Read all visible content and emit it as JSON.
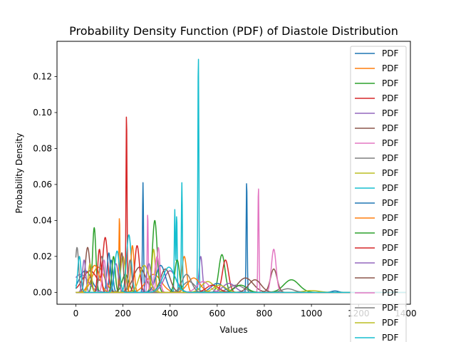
{
  "chart_data": {
    "type": "line",
    "title": "Probability Density Function (PDF) of Diastole Distribution",
    "xlabel": "Values",
    "ylabel": "Probability Density",
    "xlim": [
      -80,
      1420
    ],
    "ylim": [
      -0.0066,
      0.1396
    ],
    "x_ticks": [
      0,
      200,
      400,
      600,
      800,
      1000,
      1200,
      1400
    ],
    "x_tick_labels": [
      "0",
      "200",
      "400",
      "600",
      "800",
      "1000",
      "1200",
      "1400"
    ],
    "y_ticks": [
      0.0,
      0.02,
      0.04,
      0.06,
      0.08,
      0.1,
      0.12
    ],
    "y_tick_labels": [
      "0.00",
      "0.02",
      "0.04",
      "0.06",
      "0.08",
      "0.10",
      "0.12"
    ],
    "grid": false,
    "legend_position": "top-right",
    "series": [
      {
        "name": "PDF",
        "color": "#1f77b4",
        "peaks": [
          [
            285,
            0.061
          ],
          [
            725,
            0.062
          ],
          [
            40,
            0.012
          ],
          [
            150,
            0.018
          ],
          [
            1100,
            0.0008
          ]
        ]
      },
      {
        "name": "PDF",
        "color": "#ff7f0e",
        "peaks": [
          [
            185,
            0.042
          ],
          [
            460,
            0.02
          ],
          [
            95,
            0.014
          ],
          [
            330,
            0.01
          ]
        ]
      },
      {
        "name": "PDF",
        "color": "#2ca02c",
        "peaks": [
          [
            78,
            0.036
          ],
          [
            335,
            0.04
          ],
          [
            620,
            0.021
          ],
          [
            915,
            0.007
          ],
          [
            210,
            0.01
          ]
        ]
      },
      {
        "name": "PDF",
        "color": "#d62728",
        "peaks": [
          [
            215,
            0.1
          ],
          [
            125,
            0.029
          ],
          [
            635,
            0.018
          ],
          [
            60,
            0.012
          ]
        ]
      },
      {
        "name": "PDF",
        "color": "#9467bd",
        "peaks": [
          [
            530,
            0.02
          ],
          [
            170,
            0.016
          ],
          [
            400,
            0.012
          ],
          [
            20,
            0.01
          ]
        ]
      },
      {
        "name": "PDF",
        "color": "#8c564b",
        "peaks": [
          [
            840,
            0.013
          ],
          [
            50,
            0.025
          ],
          [
            270,
            0.014
          ],
          [
            720,
            0.008
          ]
        ]
      },
      {
        "name": "PDF",
        "color": "#e377c2",
        "peaks": [
          [
            775,
            0.059
          ],
          [
            840,
            0.024
          ],
          [
            305,
            0.044
          ],
          [
            350,
            0.025
          ]
        ]
      },
      {
        "name": "PDF",
        "color": "#7f7f7f",
        "peaks": [
          [
            5,
            0.025
          ],
          [
            110,
            0.02
          ],
          [
            480,
            0.006
          ],
          [
            680,
            0.004
          ]
        ]
      },
      {
        "name": "PDF",
        "color": "#bcbd22",
        "peaks": [
          [
            330,
            0.024
          ],
          [
            200,
            0.02
          ],
          [
            560,
            0.006
          ],
          [
            1000,
            0.001
          ]
        ]
      },
      {
        "name": "PDF",
        "color": "#17becf",
        "peaks": [
          [
            520,
            0.133
          ],
          [
            450,
            0.061
          ],
          [
            420,
            0.046
          ],
          [
            428,
            0.043
          ],
          [
            225,
            0.032
          ]
        ]
      },
      {
        "name": "PDF",
        "color": "#1f77b4",
        "peaks": [
          [
            140,
            0.022
          ],
          [
            360,
            0.015
          ],
          [
            600,
            0.005
          ]
        ]
      },
      {
        "name": "PDF",
        "color": "#ff7f0e",
        "peaks": [
          [
            240,
            0.026
          ],
          [
            80,
            0.015
          ],
          [
            500,
            0.008
          ]
        ]
      },
      {
        "name": "PDF",
        "color": "#2ca02c",
        "peaks": [
          [
            160,
            0.02
          ],
          [
            430,
            0.018
          ],
          [
            700,
            0.004
          ]
        ]
      },
      {
        "name": "PDF",
        "color": "#d62728",
        "peaks": [
          [
            100,
            0.024
          ],
          [
            260,
            0.026
          ],
          [
            580,
            0.004
          ]
        ]
      },
      {
        "name": "PDF",
        "color": "#9467bd",
        "peaks": [
          [
            35,
            0.018
          ],
          [
            310,
            0.016
          ],
          [
            650,
            0.005
          ]
        ]
      },
      {
        "name": "PDF",
        "color": "#8c564b",
        "peaks": [
          [
            195,
            0.022
          ],
          [
            380,
            0.013
          ],
          [
            760,
            0.007
          ]
        ]
      },
      {
        "name": "PDF",
        "color": "#e377c2",
        "peaks": [
          [
            120,
            0.018
          ],
          [
            345,
            0.02
          ],
          [
            540,
            0.006
          ]
        ]
      },
      {
        "name": "PDF",
        "color": "#7f7f7f",
        "peaks": [
          [
            230,
            0.018
          ],
          [
            470,
            0.01
          ],
          [
            900,
            0.002
          ]
        ]
      },
      {
        "name": "PDF",
        "color": "#bcbd22",
        "peaks": [
          [
            60,
            0.016
          ],
          [
            290,
            0.015
          ],
          [
            610,
            0.004
          ]
        ]
      },
      {
        "name": "PDF",
        "color": "#17becf",
        "peaks": [
          [
            15,
            0.02
          ],
          [
            175,
            0.023
          ],
          [
            395,
            0.014
          ]
        ]
      }
    ]
  }
}
